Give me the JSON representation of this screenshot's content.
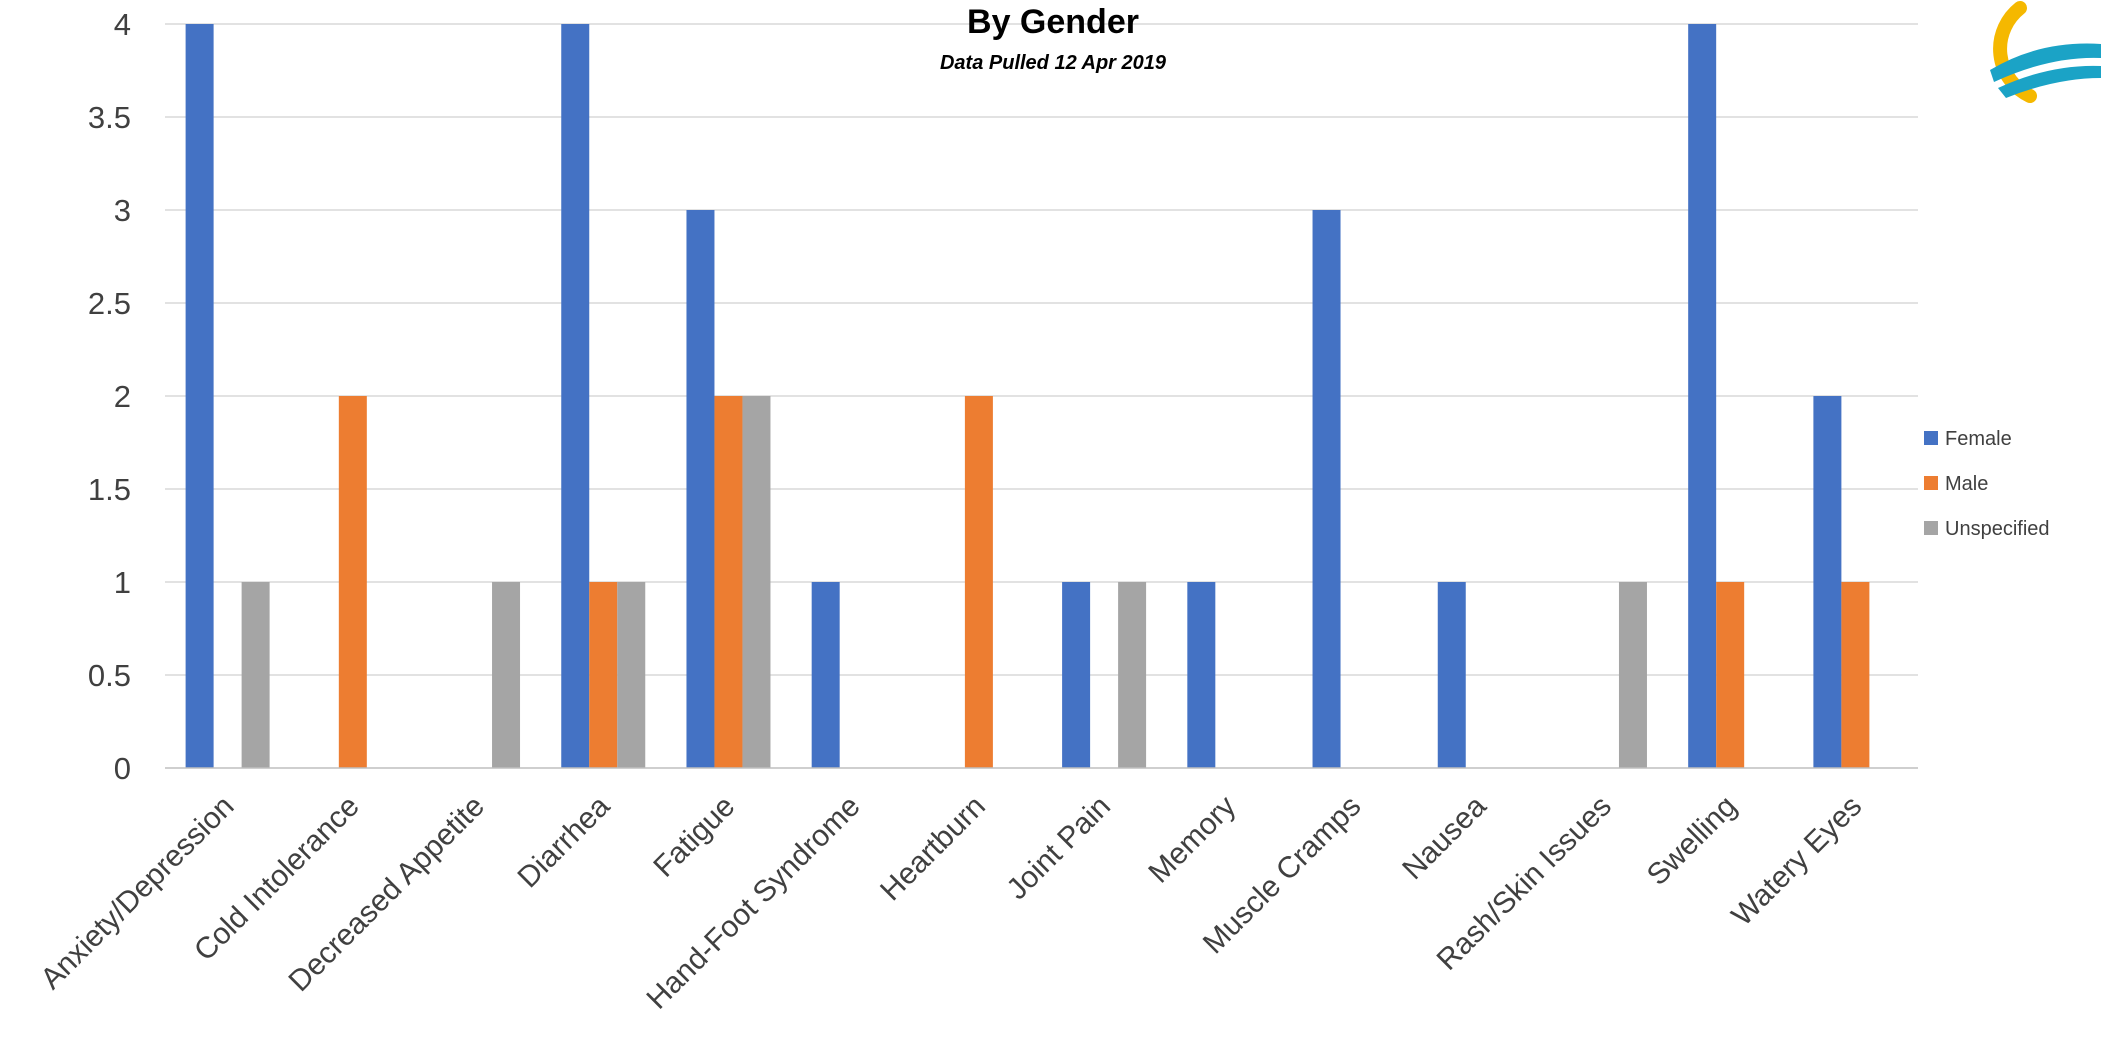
{
  "chart_data": {
    "type": "bar",
    "title": "By Gender",
    "subtitle": "Data Pulled 12 Apr 2019",
    "xlabel": "",
    "ylabel": "",
    "ylim": [
      0,
      4
    ],
    "yticks": [
      "0",
      "0.5",
      "1",
      "1.5",
      "2",
      "2.5",
      "3",
      "3.5",
      "4"
    ],
    "grid": true,
    "legend_position": "right",
    "categories": [
      "Anxiety/Depression",
      "Cold Intolerance",
      "Decreased Appetite",
      "Diarrhea",
      "Fatigue",
      "Hand-Foot Syndrome",
      "Heartburn",
      "Joint Pain",
      "Memory",
      "Muscle Cramps",
      "Nausea",
      "Rash/Skin Issues",
      "Swelling",
      "Watery Eyes"
    ],
    "series": [
      {
        "name": "Female",
        "color": "#4472C4",
        "values": [
          4,
          0,
          0,
          4,
          3,
          1,
          0,
          1,
          1,
          3,
          1,
          0,
          4,
          2
        ]
      },
      {
        "name": "Male",
        "color": "#ED7D31",
        "values": [
          0,
          2,
          0,
          1,
          2,
          0,
          2,
          0,
          0,
          0,
          0,
          0,
          1,
          1
        ]
      },
      {
        "name": "Unspecified",
        "color": "#A5A5A5",
        "values": [
          1,
          0,
          1,
          1,
          2,
          0,
          0,
          1,
          0,
          0,
          0,
          1,
          0,
          0
        ]
      }
    ]
  },
  "logo": {
    "icon": "sun-wave-logo-icon",
    "colors": {
      "sun": "#F5B800",
      "wave": "#1BA3C6"
    }
  }
}
